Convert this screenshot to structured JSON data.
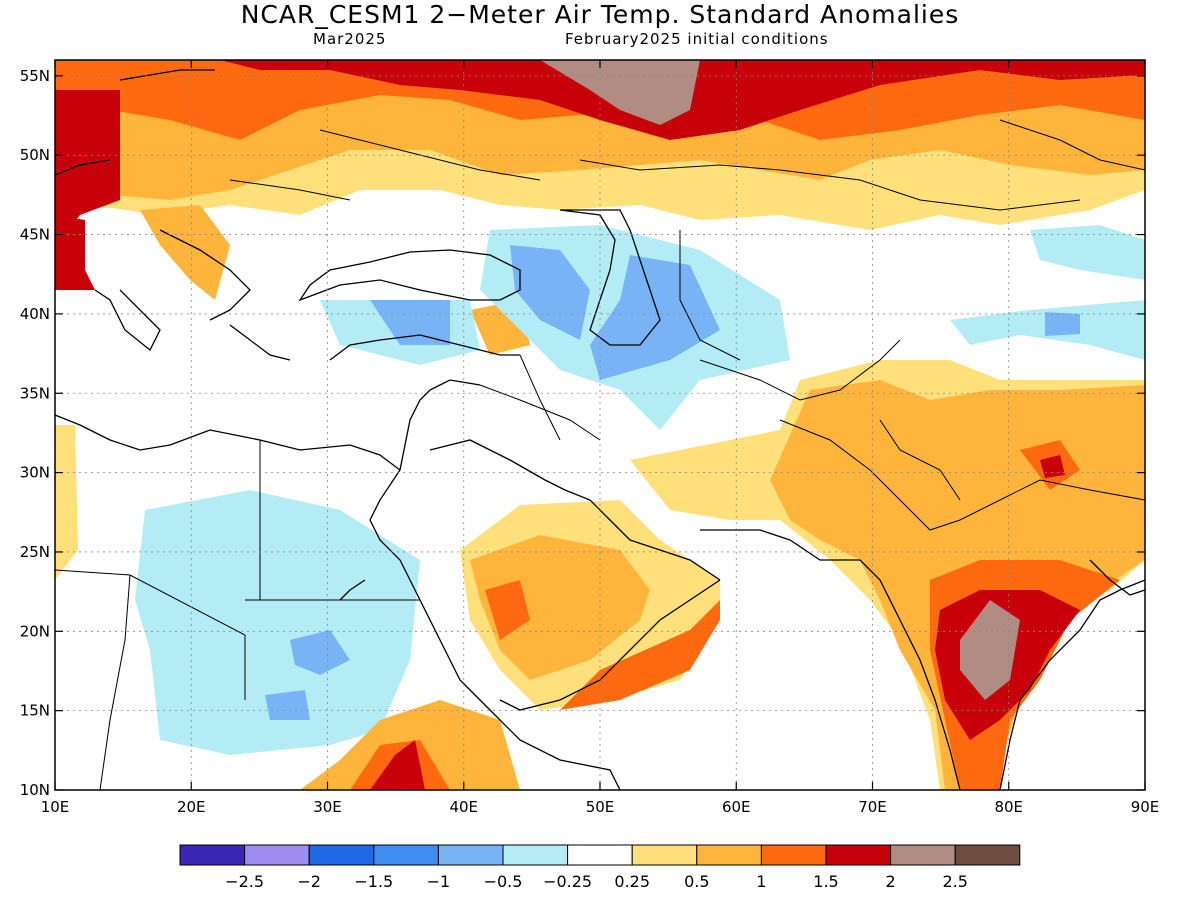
{
  "title": "NCAR_CESM1 2−Meter Air Temp. Standard Anomalies",
  "subtitle_left": "Mar2025",
  "subtitle_right": "February2025 initial conditions",
  "map": {
    "lon_range": [
      10,
      90
    ],
    "lat_range": [
      10,
      56
    ],
    "lon_ticks": [
      "10E",
      "20E",
      "30E",
      "40E",
      "50E",
      "60E",
      "70E",
      "80E",
      "90E"
    ],
    "lat_ticks": [
      "10N",
      "15N",
      "20N",
      "25N",
      "30N",
      "35N",
      "40N",
      "45N",
      "50N",
      "55N"
    ],
    "grid": "dotted"
  },
  "colorbar": {
    "colors": [
      "#3a25b5",
      "#9f8cf2",
      "#1f68e8",
      "#3f8df0",
      "#78b4f5",
      "#b4ecf5",
      "#ffffff",
      "#ffe07a",
      "#ffb43c",
      "#ff6a10",
      "#c8000a",
      "#b08c82",
      "#6e4c40"
    ],
    "labels": [
      "−2.5",
      "−2",
      "−1.5",
      "−1",
      "−0.5",
      "−0.25",
      "0.25",
      "0.5",
      "1",
      "1.5",
      "2",
      "2.5"
    ]
  }
}
